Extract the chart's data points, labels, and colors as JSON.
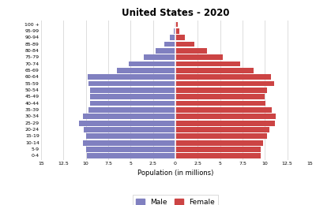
{
  "title": "United States - 2020",
  "xlabel": "Population (in millions)",
  "age_groups": [
    "0-4",
    "5-9",
    "10-14",
    "15-19",
    "20-24",
    "25-29",
    "30-34",
    "35-39",
    "40-44",
    "45-49",
    "50-54",
    "55-59",
    "60-64",
    "65-69",
    "70-74",
    "75-79",
    "80-84",
    "85-89",
    "90-94",
    "95-99",
    "100 +"
  ],
  "male": [
    9.9,
    10.0,
    10.3,
    10.0,
    10.2,
    10.8,
    10.3,
    9.7,
    9.5,
    9.5,
    9.5,
    9.7,
    9.8,
    6.5,
    5.2,
    3.5,
    2.2,
    1.2,
    0.6,
    0.18,
    0.08
  ],
  "female": [
    9.5,
    9.5,
    9.8,
    10.2,
    10.5,
    11.1,
    11.2,
    10.8,
    10.1,
    10.0,
    10.2,
    11.0,
    10.7,
    8.7,
    7.2,
    5.3,
    3.5,
    2.1,
    1.1,
    0.45,
    0.25
  ],
  "male_color": "#8080c0",
  "female_color": "#cc4444",
  "bg_color": "#ffffff",
  "grid_color": "#dddddd",
  "xlim": 15
}
